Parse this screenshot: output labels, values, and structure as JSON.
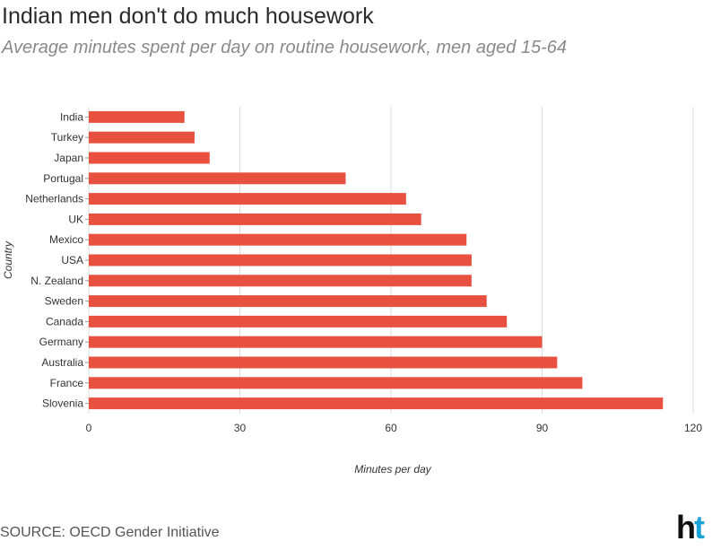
{
  "title": "Indian men don't do much housework",
  "subtitle": "Average minutes spent per day on routine housework, men aged 15-64",
  "source": "SOURCE: OECD Gender Initiative",
  "logo": {
    "text_h": "h",
    "text_t": "t",
    "color_h": "#111111",
    "color_t": "#1aa3d9"
  },
  "bar_color": "#e8503f",
  "chart_data": {
    "type": "bar",
    "orientation": "horizontal",
    "title": "Indian men don't do much housework",
    "subtitle": "Average minutes spent per day on routine housework, men aged 15-64",
    "xlabel": "Minutes per day",
    "ylabel": "Country",
    "xlim": [
      0,
      120
    ],
    "xticks": [
      0,
      30,
      60,
      90,
      120
    ],
    "grid": true,
    "categories": [
      "India",
      "Turkey",
      "Japan",
      "Portugal",
      "Netherlands",
      "UK",
      "Mexico",
      "USA",
      "N. Zealand",
      "Sweden",
      "Canada",
      "Germany",
      "Australia",
      "France",
      "Slovenia"
    ],
    "values": [
      19,
      21,
      24,
      51,
      63,
      66,
      75,
      76,
      76,
      79,
      83,
      90,
      93,
      98,
      114
    ]
  }
}
